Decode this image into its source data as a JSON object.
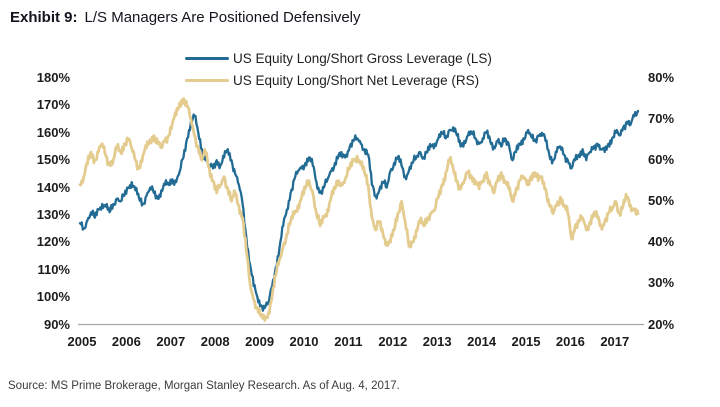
{
  "title": {
    "prefix": "Exhibit 9:",
    "text": "L/S Managers Are Positioned Defensively"
  },
  "source": "Source: MS Prime Brokerage, Morgan Stanley Research. As of Aug. 4, 2017.",
  "colors": {
    "gross_line": "#226b94",
    "net_line": "#e4cb8e",
    "axis_line": "#a8a8a8",
    "text": "#1a1a1a"
  },
  "chart_data": {
    "type": "line",
    "title": "Exhibit 9: L/S Managers Are Positioned Defensively",
    "x_start": "2005-01",
    "x_end": "2017-08",
    "points_per_year": 12,
    "x_tick_labels": [
      "2005",
      "2006",
      "2007",
      "2008",
      "2009",
      "2010",
      "2011",
      "2012",
      "2013",
      "2014",
      "2015",
      "2016",
      "2017"
    ],
    "left_axis": {
      "min": 90,
      "max": 180,
      "unit": "%",
      "tick_labels": [
        "180%",
        "170%",
        "160%",
        "150%",
        "140%",
        "130%",
        "120%",
        "110%",
        "100%",
        "90%"
      ]
    },
    "right_axis": {
      "min": 20,
      "max": 80,
      "unit": "%",
      "tick_labels": [
        "80%",
        "70%",
        "60%",
        "50%",
        "40%",
        "30%",
        "20%"
      ]
    },
    "legend_position": "top-center",
    "grid": false,
    "series": [
      {
        "name": "US Equity Long/Short Gross Leverage (LS)",
        "axis": "left",
        "color": "#226b94",
        "values": [
          127,
          125,
          128,
          131,
          129,
          132,
          134,
          133,
          131,
          134,
          136,
          135,
          137,
          140,
          142,
          139,
          136,
          134,
          137,
          140,
          138,
          136,
          139,
          141,
          141,
          143,
          142,
          146,
          151,
          158,
          164,
          166,
          160,
          154,
          150,
          148,
          147,
          150,
          148,
          151,
          154,
          150,
          145,
          141,
          134,
          122,
          112,
          104,
          100,
          97,
          96,
          98,
          104,
          111,
          118,
          126,
          132,
          138,
          143,
          146,
          147,
          149,
          151,
          148,
          142,
          138,
          140,
          143,
          146,
          149,
          152,
          151,
          152,
          155,
          157,
          158,
          156,
          154,
          152,
          141,
          137,
          139,
          142,
          140,
          146,
          149,
          151,
          148,
          144,
          146,
          149,
          151,
          153,
          151,
          153,
          155,
          156,
          158,
          160,
          158,
          161,
          162,
          159,
          155,
          157,
          159,
          160,
          158,
          156,
          158,
          160,
          157,
          155,
          157,
          155,
          158,
          156,
          150,
          153,
          156,
          158,
          160,
          159,
          157,
          159,
          160,
          157,
          152,
          150,
          153,
          155,
          152,
          150,
          147,
          150,
          152,
          154,
          150,
          153,
          155,
          156,
          154,
          153,
          156,
          158,
          160,
          159,
          162,
          164,
          163,
          166,
          168
        ]
      },
      {
        "name": "US Equity Long/Short Net Leverage (RS)",
        "axis": "right",
        "color": "#e4cb8e",
        "values": [
          54,
          56,
          59,
          62,
          60,
          62,
          64,
          61,
          59,
          60,
          63,
          62,
          64,
          65,
          63,
          60,
          58,
          61,
          63,
          65,
          66,
          64,
          63,
          65,
          66,
          69,
          71,
          74,
          75,
          73,
          70,
          66,
          63,
          60,
          62,
          58,
          55,
          52,
          54,
          56,
          53,
          50,
          52,
          49,
          46,
          38,
          30,
          26,
          24,
          22,
          21,
          23,
          27,
          32,
          36,
          39,
          42,
          45,
          47,
          49,
          51,
          53,
          55,
          52,
          47,
          44,
          46,
          48,
          51,
          53,
          55,
          54,
          56,
          58,
          60,
          61,
          59,
          57,
          54,
          46,
          43,
          45,
          42,
          40,
          40,
          43,
          47,
          50,
          45,
          39,
          40,
          43,
          45,
          44,
          46,
          47,
          48,
          51,
          54,
          57,
          60,
          58,
          55,
          53,
          55,
          57,
          56,
          55,
          53,
          55,
          57,
          54,
          52,
          55,
          57,
          55,
          53,
          50,
          53,
          55,
          56,
          54,
          56,
          57,
          55,
          56,
          53,
          49,
          47,
          49,
          51,
          49,
          47,
          41,
          44,
          45,
          46,
          43,
          45,
          47,
          46,
          44,
          45,
          47,
          48,
          50,
          47,
          49,
          51,
          49,
          48,
          47
        ]
      }
    ]
  }
}
